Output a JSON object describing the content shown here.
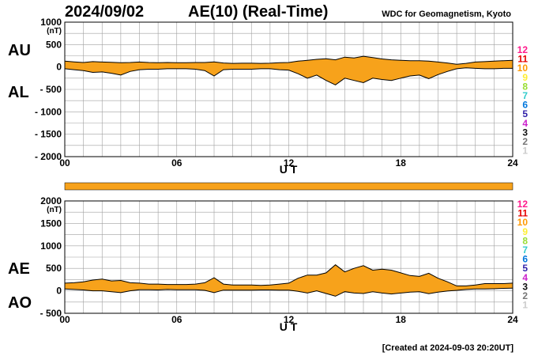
{
  "header": {
    "date": "2024/09/02",
    "title": "AE(10) (Real-Time)",
    "source": "WDC for Geomagnetism, Kyoto"
  },
  "footer": {
    "created": "[Created at 2024-09-03 20:20UT]"
  },
  "colors": {
    "fill": "#f7a21b",
    "line": "#000000",
    "grid": "#a0a0a0"
  },
  "legend": {
    "entries": [
      {
        "label": "12",
        "color": "#ff1a8c"
      },
      {
        "label": "11",
        "color": "#e60000"
      },
      {
        "label": "10",
        "color": "#ff9900"
      },
      {
        "label": "9",
        "color": "#ffee33"
      },
      {
        "label": "8",
        "color": "#99dd33"
      },
      {
        "label": "7",
        "color": "#33cccc"
      },
      {
        "label": "6",
        "color": "#0077dd"
      },
      {
        "label": "5",
        "color": "#3322aa"
      },
      {
        "label": "4",
        "color": "#cc22cc"
      },
      {
        "label": "3",
        "color": "#111111"
      },
      {
        "label": "2",
        "color": "#777777"
      },
      {
        "label": "1",
        "color": "#cccccc"
      }
    ]
  },
  "chart_data": [
    {
      "type": "area",
      "title": "AU / AL",
      "upper_label": "AU",
      "lower_label": "AL",
      "ylabel": "(nT)",
      "xlabel": "U T",
      "xlim": [
        0,
        24
      ],
      "ylim": [
        -2000,
        1000
      ],
      "yticks": [
        1000,
        500,
        0,
        -500,
        -1000,
        -1500,
        -2000
      ],
      "ytick_labels": [
        "1000",
        "500",
        "0",
        "- 500",
        "- 1000",
        "- 1500",
        "- 2000"
      ],
      "xticks": [
        0,
        6,
        12,
        18,
        24
      ],
      "xtick_labels": [
        "00",
        "06",
        "12",
        "18",
        "24"
      ],
      "grid": true,
      "series": [
        {
          "name": "AU",
          "x": [
            0,
            0.5,
            1,
            1.5,
            2,
            2.5,
            3,
            3.5,
            4,
            4.5,
            5,
            5.5,
            6,
            6.5,
            7,
            7.5,
            8,
            8.5,
            9,
            9.5,
            10,
            10.5,
            11,
            11.5,
            12,
            12.5,
            13,
            13.5,
            14,
            14.5,
            15,
            15.5,
            16,
            16.5,
            17,
            17.5,
            18,
            18.5,
            19,
            19.5,
            20,
            20.5,
            21,
            21.5,
            22,
            22.5,
            23,
            23.5,
            24
          ],
          "values": [
            130,
            115,
            100,
            120,
            110,
            105,
            95,
            100,
            110,
            100,
            95,
            100,
            95,
            95,
            100,
            100,
            115,
            90,
            80,
            85,
            85,
            80,
            85,
            95,
            100,
            130,
            150,
            170,
            185,
            160,
            220,
            200,
            240,
            210,
            180,
            160,
            150,
            140,
            140,
            130,
            110,
            90,
            60,
            80,
            110,
            120,
            130,
            140,
            150
          ]
        },
        {
          "name": "AL",
          "x": [
            0,
            0.5,
            1,
            1.5,
            2,
            2.5,
            3,
            3.5,
            4,
            4.5,
            5,
            5.5,
            6,
            6.5,
            7,
            7.5,
            8,
            8.5,
            9,
            9.5,
            10,
            10.5,
            11,
            11.5,
            12,
            12.5,
            13,
            13.5,
            14,
            14.5,
            15,
            15.5,
            16,
            16.5,
            17,
            17.5,
            18,
            18.5,
            19,
            19.5,
            20,
            20.5,
            21,
            21.5,
            22,
            22.5,
            23,
            23.5,
            24
          ],
          "values": [
            -40,
            -60,
            -80,
            -120,
            -110,
            -140,
            -180,
            -100,
            -60,
            -50,
            -50,
            -40,
            -40,
            -40,
            -50,
            -80,
            -200,
            -60,
            -50,
            -50,
            -50,
            -40,
            -40,
            -60,
            -70,
            -150,
            -250,
            -180,
            -300,
            -400,
            -250,
            -300,
            -350,
            -250,
            -280,
            -300,
            -250,
            -200,
            -180,
            -260,
            -170,
            -100,
            -40,
            -20,
            -30,
            -40,
            -40,
            -30,
            -30
          ]
        }
      ]
    },
    {
      "type": "area",
      "title": "AE / AO",
      "upper_label": "AE",
      "lower_label": "AO",
      "ylabel": "(nT)",
      "xlabel": "U T",
      "xlim": [
        0,
        24
      ],
      "ylim": [
        -500,
        2000
      ],
      "yticks": [
        2000,
        1500,
        1000,
        500,
        0,
        -500
      ],
      "ytick_labels": [
        "2000",
        "1500",
        "1000",
        "500",
        "0",
        "- 500"
      ],
      "xticks": [
        0,
        6,
        12,
        18,
        24
      ],
      "xtick_labels": [
        "00",
        "06",
        "12",
        "18",
        "24"
      ],
      "grid": true,
      "series": [
        {
          "name": "AE",
          "x": [
            0,
            0.5,
            1,
            1.5,
            2,
            2.5,
            3,
            3.5,
            4,
            4.5,
            5,
            5.5,
            6,
            6.5,
            7,
            7.5,
            8,
            8.5,
            9,
            9.5,
            10,
            10.5,
            11,
            11.5,
            12,
            12.5,
            13,
            13.5,
            14,
            14.5,
            15,
            15.5,
            16,
            16.5,
            17,
            17.5,
            18,
            18.5,
            19,
            19.5,
            20,
            20.5,
            21,
            21.5,
            22,
            22.5,
            23,
            23.5,
            24
          ],
          "values": [
            170,
            180,
            200,
            240,
            260,
            220,
            230,
            180,
            170,
            150,
            150,
            140,
            140,
            140,
            150,
            180,
            290,
            150,
            130,
            130,
            130,
            120,
            130,
            150,
            170,
            280,
            350,
            350,
            400,
            580,
            420,
            500,
            560,
            460,
            480,
            460,
            400,
            340,
            320,
            390,
            280,
            200,
            110,
            110,
            130,
            160,
            160,
            160,
            170
          ]
        },
        {
          "name": "AO",
          "x": [
            0,
            0.5,
            1,
            1.5,
            2,
            2.5,
            3,
            3.5,
            4,
            4.5,
            5,
            5.5,
            6,
            6.5,
            7,
            7.5,
            8,
            8.5,
            9,
            9.5,
            10,
            10.5,
            11,
            11.5,
            12,
            12.5,
            13,
            13.5,
            14,
            14.5,
            15,
            15.5,
            16,
            16.5,
            17,
            17.5,
            18,
            18.5,
            19,
            19.5,
            20,
            20.5,
            21,
            21.5,
            22,
            22.5,
            23,
            23.5,
            24
          ],
          "values": [
            40,
            30,
            20,
            0,
            0,
            -20,
            -40,
            0,
            25,
            25,
            20,
            30,
            25,
            25,
            25,
            10,
            -40,
            15,
            15,
            15,
            15,
            20,
            20,
            15,
            15,
            -10,
            -50,
            0,
            -60,
            -120,
            -20,
            -50,
            -60,
            -20,
            -50,
            -70,
            -50,
            -30,
            -20,
            -65,
            -30,
            -5,
            10,
            30,
            40,
            40,
            45,
            55,
            60
          ]
        }
      ]
    }
  ]
}
